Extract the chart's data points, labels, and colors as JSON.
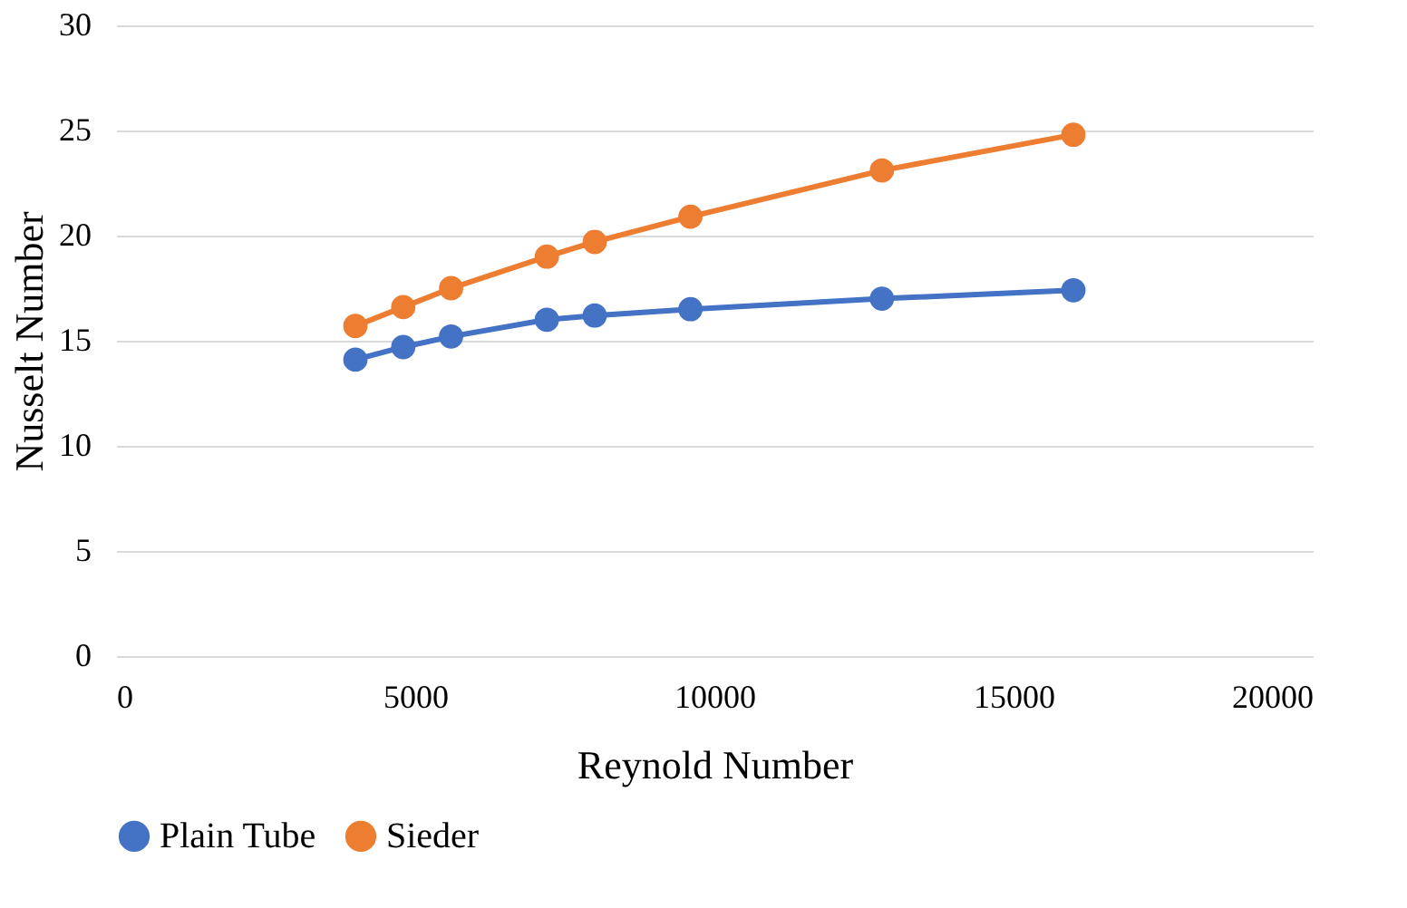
{
  "chart_data": {
    "type": "line",
    "xlabel": "Reynold Number",
    "ylabel": "Nusselt Number",
    "x": [
      4000,
      4800,
      5600,
      7200,
      8000,
      9600,
      12800,
      16000
    ],
    "series": [
      {
        "name": "Plain Tube",
        "color": "#4472c4",
        "values": [
          14.1,
          14.7,
          15.2,
          16.0,
          16.2,
          16.5,
          17.0,
          17.4
        ]
      },
      {
        "name": "Sieder",
        "color": "#ed7d31",
        "values": [
          15.7,
          16.6,
          17.5,
          19.0,
          19.7,
          20.9,
          23.1,
          24.8
        ]
      }
    ],
    "xlim": [
      0,
      20000
    ],
    "xticks": [
      0,
      5000,
      10000,
      15000,
      20000
    ],
    "ylim": [
      0,
      30
    ],
    "yticks": [
      0,
      5,
      10,
      15,
      20,
      25,
      30
    ],
    "grid": "y",
    "legend": "bottom",
    "marker": "circle",
    "line_style": "solid"
  }
}
